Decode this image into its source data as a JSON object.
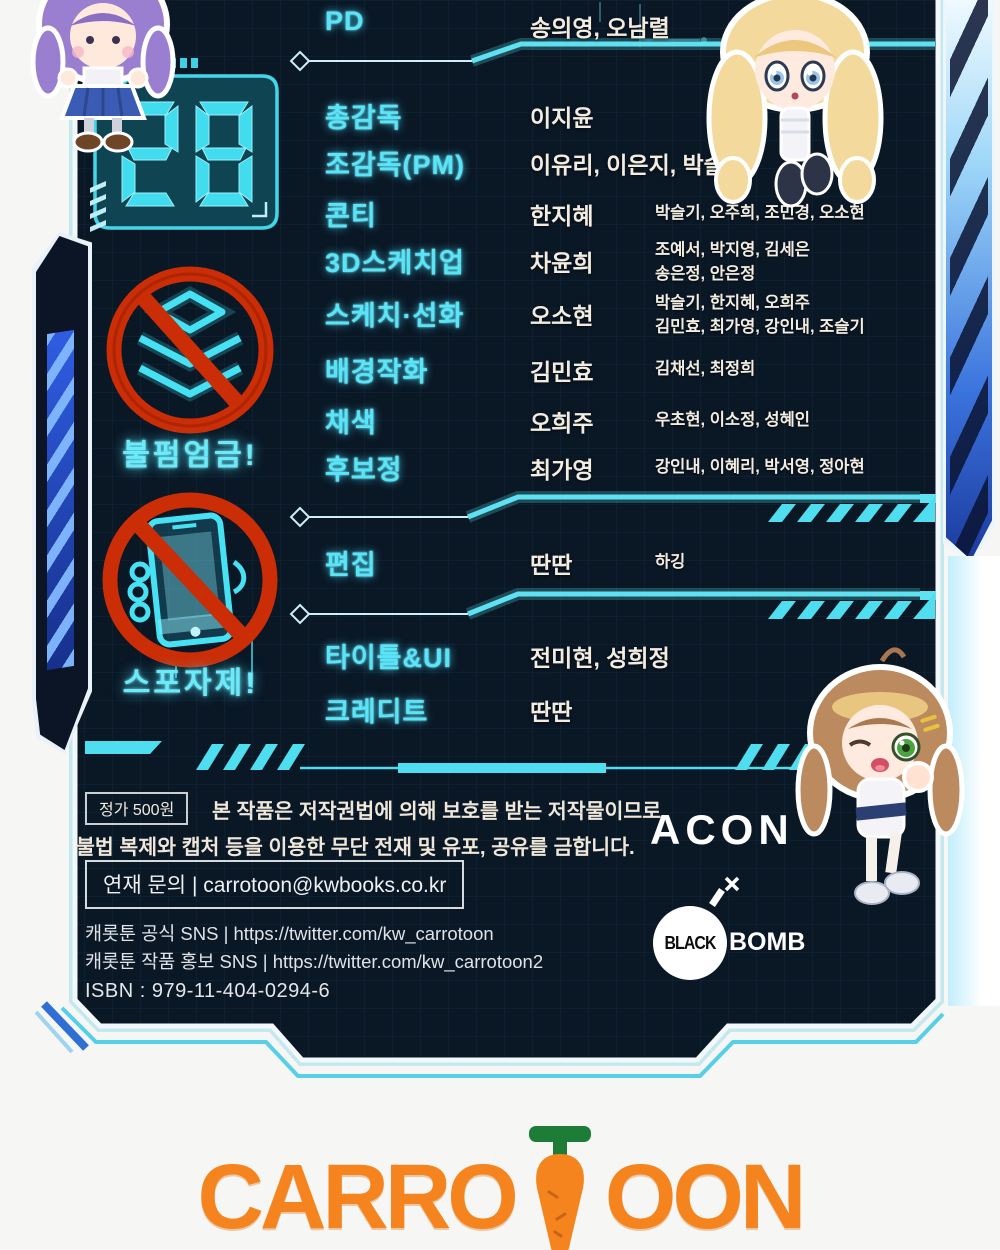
{
  "episode_number": "28",
  "divider": "|",
  "warnings": {
    "no_copy": "불펌엄금!",
    "no_spoiler": "스포자제!"
  },
  "credits": {
    "pd": {
      "role": "PD",
      "names": "송의영, 오남렬"
    },
    "main": [
      {
        "role": "총감독",
        "names": "이지윤",
        "extra": []
      },
      {
        "role": "조감독(PM)",
        "names": "이유리, 이은지, 박슬기",
        "extra": []
      },
      {
        "role": "콘티",
        "names": "한지혜",
        "extra": [
          "박슬기, 오주희, 조민경, 오소현"
        ]
      },
      {
        "role": "3D스케치업",
        "names": "차윤희",
        "extra": [
          "조예서, 박지영, 김세은",
          "송은정, 안은정"
        ]
      },
      {
        "role": "스케치·선화",
        "names": "오소현",
        "extra": [
          "박슬기, 한지혜, 오희주",
          "김민효, 최가영, 강인내, 조슬기"
        ]
      },
      {
        "role": "배경작화",
        "names": "김민효",
        "extra": [
          "김채선, 최정희"
        ]
      },
      {
        "role": "채색",
        "names": "오희주",
        "extra": [
          "우초현, 이소정, 성혜인"
        ]
      },
      {
        "role": "후보정",
        "names": "최가영",
        "extra": [
          "강인내, 이혜리, 박서영, 정아현"
        ]
      }
    ],
    "edit": {
      "role": "편집",
      "names": "딴딴",
      "extra": "하깅"
    },
    "title_ui": {
      "role": "타이틀&UI",
      "names": "전미현, 성희정"
    },
    "credit": {
      "role": "크레디트",
      "names": "딴딴"
    }
  },
  "footer": {
    "price": "정가 500원",
    "copyright_line1": "본 작품은 저작권법에 의해 보호를 받는 저작물이므로",
    "copyright_line2": "불법 복제와 캡처 등을 이용한 무단 전재 및 유포, 공유를 금합니다.",
    "contact_label": "연재 문의",
    "contact_email": "carrotoon@kwbooks.co.kr",
    "sns_official_label": "캐롯툰 공식 SNS",
    "sns_official_url": "https://twitter.com/kw_carrotoon",
    "sns_promo_label": "캐롯툰 작품 홍보 SNS",
    "sns_promo_url": "https://twitter.com/kw_carrotoon2",
    "isbn": "ISBN : 979-11-404-0294-6"
  },
  "logos": {
    "acon": "ACON",
    "black": "BLACK",
    "bomb": "BOMB",
    "carro": "CARRO",
    "oon": "OON"
  },
  "colors": {
    "accent_cyan": "#52e0f2",
    "panel_bg": "#0a1725",
    "prohibit_red": "#cb2d06",
    "carrot_orange": "#f5831e",
    "carrot_green": "#1d7c35"
  }
}
